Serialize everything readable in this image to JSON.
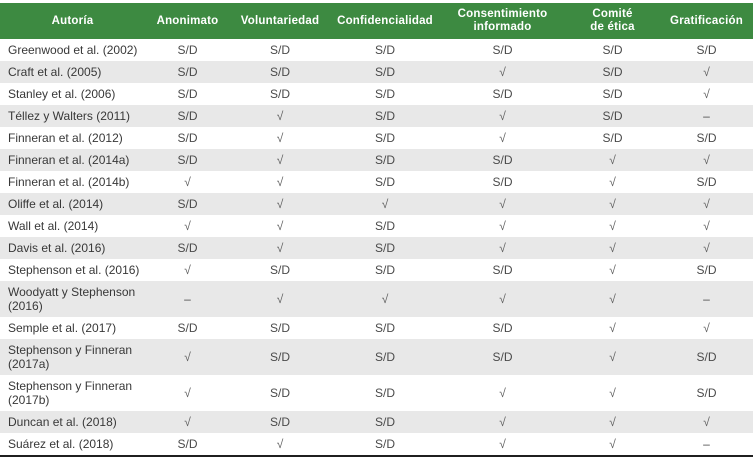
{
  "colors": {
    "header_bg": "#3d8a41",
    "header_text": "#ffffff",
    "row_stripe": "#e8e8e8",
    "row_bg": "#ffffff",
    "body_text": "#4a4a4a",
    "bottom_border": "#1f1f1f"
  },
  "table": {
    "columns": [
      "Autoría",
      "Anonimato",
      "Voluntariedad",
      "Confidencialidad",
      "Consentimiento\ninformado",
      "Comité\nde ética",
      "Gratificación"
    ],
    "rows": [
      {
        "author": "Greenwood et al. (2002)",
        "values": [
          "S/D",
          "S/D",
          "S/D",
          "S/D",
          "S/D",
          "S/D"
        ]
      },
      {
        "author": "Craft et al. (2005)",
        "values": [
          "S/D",
          "S/D",
          "S/D",
          "√",
          "S/D",
          "√"
        ]
      },
      {
        "author": "Stanley et al. (2006)",
        "values": [
          "S/D",
          "S/D",
          "S/D",
          "S/D",
          "S/D",
          "√"
        ]
      },
      {
        "author": "Téllez y Walters (2011)",
        "values": [
          "S/D",
          "√",
          "S/D",
          "√",
          "S/D",
          "–"
        ]
      },
      {
        "author": "Finneran et al. (2012)",
        "values": [
          "S/D",
          "√",
          "S/D",
          "√",
          "S/D",
          "S/D"
        ]
      },
      {
        "author": "Finneran et al. (2014a)",
        "values": [
          "S/D",
          "√",
          "S/D",
          "S/D",
          "√",
          "√"
        ]
      },
      {
        "author": "Finneran et al. (2014b)",
        "values": [
          "√",
          "√",
          "S/D",
          "S/D",
          "√",
          "S/D"
        ]
      },
      {
        "author": "Oliffe et al. (2014)",
        "values": [
          "S/D",
          "√",
          "√",
          "√",
          "√",
          "√"
        ]
      },
      {
        "author": "Wall et al. (2014)",
        "values": [
          "√",
          "√",
          "S/D",
          "√",
          "√",
          "√"
        ]
      },
      {
        "author": "Davis et al. (2016)",
        "values": [
          "S/D",
          "√",
          "S/D",
          "√",
          "√",
          "√"
        ]
      },
      {
        "author": "Stephenson et al. (2016)",
        "values": [
          "√",
          "S/D",
          "S/D",
          "S/D",
          "√",
          "S/D"
        ]
      },
      {
        "author": "Woodyatt y Stephenson (2016)",
        "values": [
          "–",
          "√",
          "√",
          "√",
          "√",
          "–"
        ]
      },
      {
        "author": "Semple et al. (2017)",
        "values": [
          "S/D",
          "S/D",
          "S/D",
          "S/D",
          "√",
          "√"
        ]
      },
      {
        "author": "Stephenson y Finneran (2017a)",
        "values": [
          "√",
          "S/D",
          "S/D",
          "S/D",
          "√",
          "S/D"
        ]
      },
      {
        "author": "Stephenson y Finneran (2017b)",
        "values": [
          "√",
          "S/D",
          "S/D",
          "√",
          "√",
          "S/D"
        ]
      },
      {
        "author": "Duncan et al. (2018)",
        "values": [
          "√",
          "S/D",
          "S/D",
          "√",
          "√",
          "√"
        ]
      },
      {
        "author": "Suárez et al. (2018)",
        "values": [
          "S/D",
          "√",
          "S/D",
          "√",
          "√",
          "–"
        ]
      }
    ]
  }
}
